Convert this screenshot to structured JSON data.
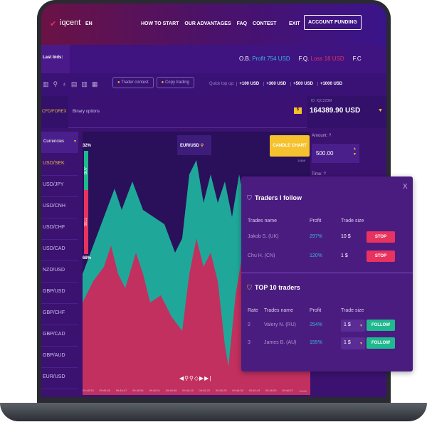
{
  "header": {
    "logo": "iqcent",
    "lang": "EN",
    "nav": [
      "HOW TO START",
      "OUR ADVANTAGES",
      "FAQ",
      "CONTEST"
    ],
    "exit": "EXIT",
    "funding": "ACCOUNT FUNDING"
  },
  "bids": {
    "label": "Last bids:",
    "items": [
      {
        "name": "O.B.",
        "result": "Profit 754 USD",
        "color": "#38b6e0"
      },
      {
        "name": "F.Q.",
        "result": "Loss 18 USD",
        "color": "#e8325f"
      },
      {
        "name": "F.C",
        "result": "",
        "color": "#fff"
      }
    ]
  },
  "toolbar": {
    "trader_contest": "Trader contest",
    "copy_trading": "Copy trading",
    "quick_top_up": "Quick top up:",
    "amounts": [
      "+100 USD",
      "+300 USD",
      "+500 USD",
      "+1000 USD"
    ]
  },
  "tabs": {
    "cfd": "CFD/FOREX",
    "binary": "Binary options"
  },
  "account": {
    "id": "ID: IQC223M",
    "balance": "164389.90 USD"
  },
  "currencies": {
    "dropdown": "Currencies",
    "items": [
      "USD/SEK",
      "USD/JPY",
      "USD/CNH",
      "USD/CHF",
      "USD/CAD",
      "NZD/USD",
      "GBP/USD",
      "GBP/CHF",
      "GBP/CAD",
      "GBP/AUD",
      "EUR/USD"
    ]
  },
  "chart": {
    "pair": "EUR/USD",
    "buy_pct": "32%",
    "sell_pct": "68%",
    "buy": "BUY",
    "sell": "SELL",
    "candle": "CANDLE CHART",
    "price_top": "11468",
    "price_bottom": "11465",
    "times": [
      "09:45:33",
      "09:45:40",
      "09:45:47",
      "09:45:54",
      "09:46:01",
      "09:46:08",
      "09:46:15",
      "09:46:22",
      "09:46:29",
      "09:46:36",
      "09:46:43",
      "09:46:50",
      "09:46:57"
    ],
    "colors": {
      "buy": "#1fa89a",
      "sell": "#c2305f"
    }
  },
  "trade": {
    "amount_label": "Amount: ?",
    "amount": "500.00",
    "time_label": "Time: ?"
  },
  "popup": {
    "close": "X",
    "follow_title": "Traders I follow",
    "follow_headers": [
      "Trades name",
      "Profit",
      "Trade size"
    ],
    "following": [
      {
        "name": "Jakob S. (UK)",
        "profit": "297%",
        "size": "10 $",
        "action": "STOP"
      },
      {
        "name": "Chu H. (CN)",
        "profit": "120%",
        "size": "1 $",
        "action": "STOP"
      }
    ],
    "top_title": "TOP 10 traders",
    "top_headers": [
      "Rate",
      "Trades name",
      "Profit",
      "Trade size"
    ],
    "top": [
      {
        "rate": "2",
        "name": "Valery N. (RU)",
        "profit": "254%",
        "size": "1 $",
        "action": "FOLLOW"
      },
      {
        "rate": "3",
        "name": "James B. (AU)",
        "profit": "155%",
        "size": "1 $",
        "action": "FOLLOW"
      }
    ]
  }
}
